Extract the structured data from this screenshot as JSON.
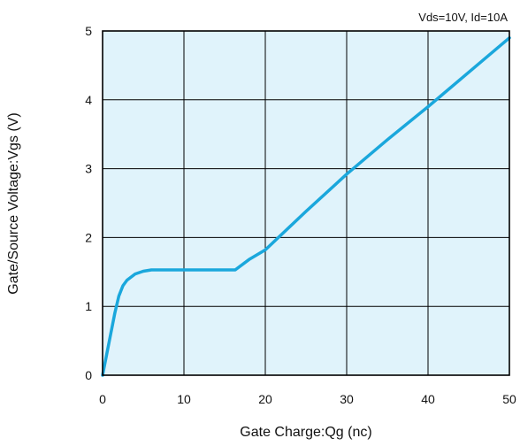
{
  "chart_data": {
    "type": "line",
    "title": "",
    "annotation": "Vds=10V, Id=10A",
    "xlabel": "Gate Charge:Qg (nc)",
    "ylabel": "Gate/Source Voltage:Vgs (V)",
    "xlim": [
      0,
      50
    ],
    "ylim": [
      0,
      5
    ],
    "x_ticks": [
      "0",
      "10",
      "20",
      "30",
      "40",
      "50"
    ],
    "y_ticks": [
      "0",
      "1",
      "2",
      "3",
      "4",
      "5"
    ],
    "grid": true,
    "background_color": "#e0f3fb",
    "series": [
      {
        "color": "#1aa7dc",
        "x": [
          0,
          0.5,
          1,
          1.5,
          2,
          2.5,
          3,
          4,
          5,
          6,
          8,
          10,
          12,
          14,
          16.3,
          18,
          20,
          25,
          30,
          35,
          40,
          45,
          50
        ],
        "y": [
          0,
          0.3,
          0.6,
          0.9,
          1.15,
          1.3,
          1.38,
          1.47,
          1.51,
          1.53,
          1.53,
          1.53,
          1.53,
          1.53,
          1.53,
          1.68,
          1.82,
          2.38,
          2.92,
          3.42,
          3.9,
          4.4,
          4.9
        ]
      }
    ]
  }
}
